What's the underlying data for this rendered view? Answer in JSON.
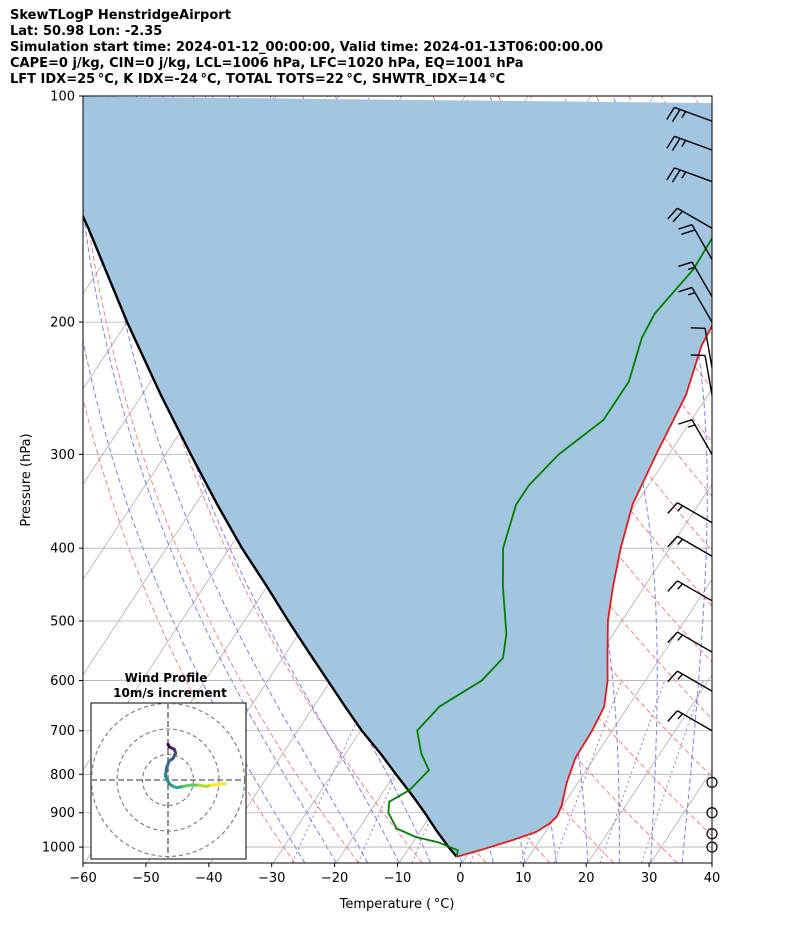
{
  "header": {
    "title": "SkewTLogP HenstridgeAirport",
    "location": "Lat: 50.98   Lon: -2.35",
    "simulation": "Simulation start time: 2024-01-12_00:00:00, Valid time: 2024-01-13T06:00:00.00",
    "indices_1": "CAPE=0 j/kg, CIN=0 j/kg, LCL=1006 hPa, LFC=1020 hPa, EQ=1001 hPa",
    "indices_2": "LFT IDX=25 °C, K IDX=-24 °C, TOTAL TOTS=22 °C, SHWTR_IDX=14 °C"
  },
  "chart_data": {
    "type": "line",
    "xlabel": "Temperature ( °C)",
    "ylabel": "Pressure (hPa)",
    "xlim": [
      -60,
      40
    ],
    "ylim": [
      1050,
      100
    ],
    "y_scale": "log",
    "x_ticks": [
      -60,
      -50,
      -40,
      -30,
      -20,
      -10,
      0,
      10,
      20,
      30,
      40
    ],
    "x_tick_labels": [
      "−60",
      "−50",
      "−40",
      "−30",
      "−20",
      "−10",
      "0",
      "10",
      "20",
      "30",
      "40"
    ],
    "y_ticks": [
      1000,
      900,
      800,
      700,
      600,
      500,
      400,
      300,
      200,
      100
    ],
    "y_tick_labels": [
      "1000",
      "900",
      "800",
      "700",
      "600",
      "500",
      "400",
      "300",
      "200",
      "100"
    ],
    "grid": true,
    "colors": {
      "temperature": "#e41a1c",
      "dewpoint": "#008000",
      "parcel": "#000000",
      "shade": "#a3c6e0",
      "dry_adiabat": "#f26b6b",
      "moist_adiabat": "#5a6cf0",
      "isotherm": "#b0b0b0",
      "mixing_ratio": "#8a4fc7"
    },
    "series": [
      {
        "key": "temperature",
        "pressure": [
          1030,
          1010,
          980,
          955,
          930,
          910,
          880,
          820,
          760,
          700,
          650,
          600,
          550,
          500,
          450,
          400,
          350,
          300,
          250,
          215,
          200,
          180,
          150,
          130,
          112,
          103
        ],
        "values": [
          -1.5,
          1.5,
          5.5,
          8.5,
          9.8,
          10.2,
          9.8,
          8.2,
          7.0,
          6.8,
          6.2,
          4.0,
          1.0,
          -2.2,
          -5.0,
          -7.8,
          -10.5,
          -12.0,
          -13.5,
          -16.2,
          -16.7,
          -15.5,
          -11.8,
          -7.0,
          -3.0,
          0.5
        ]
      },
      {
        "key": "dewpoint",
        "pressure": [
          1030,
          1010,
          985,
          970,
          945,
          900,
          870,
          840,
          790,
          750,
          700,
          650,
          600,
          560,
          520,
          450,
          400,
          350,
          330,
          300,
          270,
          240,
          210,
          195,
          170,
          155,
          140,
          125,
          110,
          100
        ],
        "values": [
          -1.5,
          -2.0,
          -6.0,
          -10.0,
          -14.0,
          -17.0,
          -18.0,
          -16.0,
          -15.0,
          -18.0,
          -21.0,
          -20.0,
          -16.0,
          -15.0,
          -17.0,
          -22.5,
          -26.5,
          -29.0,
          -29.0,
          -27.5,
          -24.0,
          -24.0,
          -26.5,
          -27.0,
          -25.5,
          -25.8,
          -25.7,
          -24.0,
          -21.0,
          -18.5
        ]
      },
      {
        "key": "parcel",
        "pressure": [
          1030,
          1000,
          950,
          900,
          850,
          800,
          750,
          700,
          650,
          600,
          550,
          500,
          450,
          400,
          350,
          300,
          250,
          200,
          150,
          120,
          100
        ],
        "values": [
          -1.5,
          -3.8,
          -7.5,
          -11.2,
          -15.3,
          -19.8,
          -24.5,
          -29.8,
          -35.0,
          -40.5,
          -46.5,
          -53.0,
          -60.0,
          -68.0,
          -76.5,
          -86.0,
          -97.0,
          -110.0,
          -126.0,
          -139.0,
          -149.0
        ]
      }
    ],
    "wind_barbs": {
      "speed_units": "kt",
      "levels": [
        {
          "pressure": 1000,
          "direction": 270,
          "speed": 0
        },
        {
          "pressure": 960,
          "direction": 270,
          "speed": 0
        },
        {
          "pressure": 900,
          "direction": 270,
          "speed": 0
        },
        {
          "pressure": 820,
          "direction": 270,
          "speed": 0
        },
        {
          "pressure": 700,
          "direction": 300,
          "speed": 15
        },
        {
          "pressure": 620,
          "direction": 300,
          "speed": 15
        },
        {
          "pressure": 550,
          "direction": 300,
          "speed": 15
        },
        {
          "pressure": 470,
          "direction": 300,
          "speed": 15
        },
        {
          "pressure": 410,
          "direction": 300,
          "speed": 15
        },
        {
          "pressure": 370,
          "direction": 300,
          "speed": 15
        },
        {
          "pressure": 300,
          "direction": 330,
          "speed": 15
        },
        {
          "pressure": 250,
          "direction": 350,
          "speed": 10
        },
        {
          "pressure": 230,
          "direction": 350,
          "speed": 10
        },
        {
          "pressure": 200,
          "direction": 330,
          "speed": 15
        },
        {
          "pressure": 185,
          "direction": 330,
          "speed": 15
        },
        {
          "pressure": 165,
          "direction": 330,
          "speed": 20
        },
        {
          "pressure": 150,
          "direction": 300,
          "speed": 20
        },
        {
          "pressure": 130,
          "direction": 290,
          "speed": 25
        },
        {
          "pressure": 118,
          "direction": 290,
          "speed": 25
        },
        {
          "pressure": 108,
          "direction": 290,
          "speed": 25
        }
      ]
    },
    "hodograph": {
      "title": "Wind Profile",
      "subtitle": "10m/s increment",
      "rings": [
        10,
        20,
        30
      ],
      "u": [
        0.0,
        0.5,
        1.5,
        2.5,
        3.0,
        2.0,
        0.5,
        -0.5,
        -1.0,
        0.5,
        2.0,
        3.5,
        6.0,
        9.0,
        12.0,
        15.0,
        17.0,
        19.0,
        21.0,
        22.5
      ],
      "v": [
        14.0,
        13.0,
        12.5,
        12.0,
        10.5,
        8.5,
        7.5,
        5.0,
        1.5,
        -1.5,
        -2.5,
        -3.0,
        -2.5,
        -2.0,
        -2.0,
        -2.5,
        -2.0,
        -1.8,
        -1.5,
        -1.5
      ]
    }
  }
}
